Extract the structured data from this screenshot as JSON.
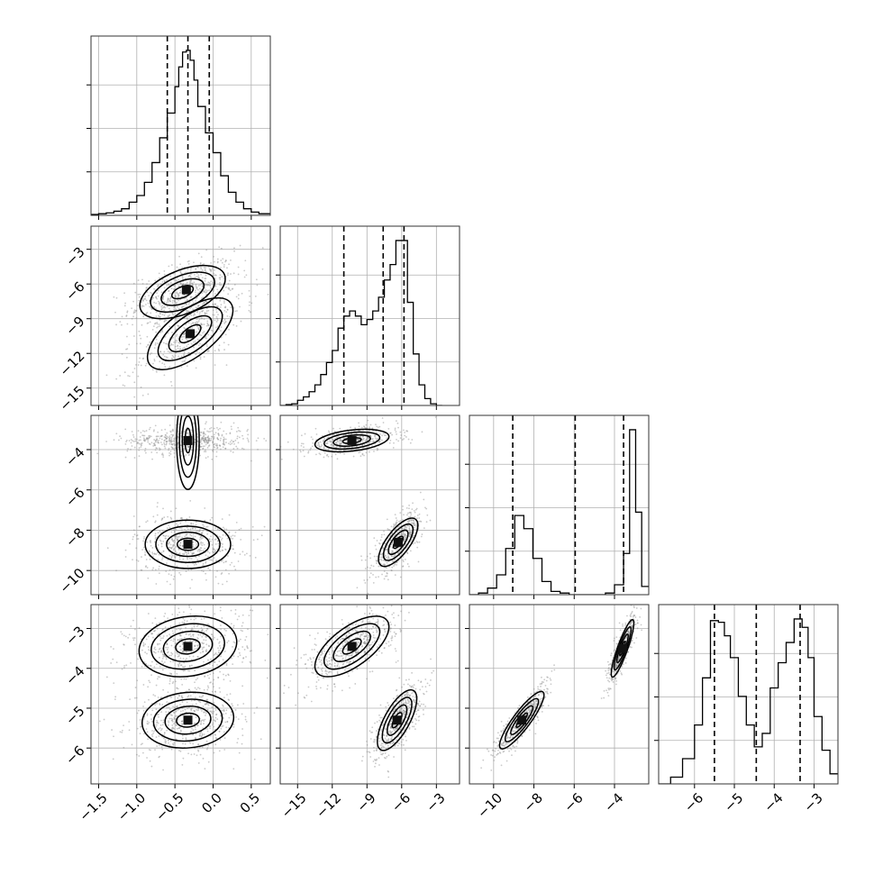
{
  "chart_data": {
    "type": "corner",
    "parameters": [
      {
        "index": 0,
        "range": [
          -1.6,
          0.75
        ],
        "ticks": [
          -1.5,
          -1.0,
          -0.5,
          0.0,
          0.5
        ],
        "tick_labels": [
          "−1.5",
          "−1.0",
          "−0.5",
          "0.0",
          "0.5"
        ],
        "quantiles": [
          -0.6,
          -0.33,
          -0.05
        ]
      },
      {
        "index": 1,
        "range": [
          -16.5,
          -1.0
        ],
        "ticks": [
          -15,
          -12,
          -9,
          -6,
          -3
        ],
        "tick_labels": [
          "−15",
          "−12",
          "−9",
          "−6",
          "−3"
        ],
        "quantiles": [
          -11.0,
          -7.6,
          -5.8
        ]
      },
      {
        "index": 2,
        "range": [
          -11.2,
          -2.3
        ],
        "ticks": [
          -10,
          -8,
          -6,
          -4
        ],
        "tick_labels": [
          "−10",
          "−8",
          "−6",
          "−4"
        ],
        "quantiles": [
          -9.05,
          -5.95,
          -3.55
        ]
      },
      {
        "index": 3,
        "range": [
          -6.9,
          -2.4
        ],
        "ticks": [
          -6,
          -5,
          -4,
          -3
        ],
        "tick_labels": [
          "−6",
          "−5",
          "−4",
          "−3"
        ],
        "quantiles": [
          -5.5,
          -4.45,
          -3.35
        ]
      }
    ],
    "histograms": [
      {
        "param": 0,
        "bins": [
          -1.6,
          -1.5,
          -1.4,
          -1.3,
          -1.2,
          -1.1,
          -1.0,
          -0.9,
          -0.8,
          -0.7,
          -0.6,
          -0.5,
          -0.45,
          -0.4,
          -0.35,
          -0.3,
          -0.25,
          -0.2,
          -0.1,
          0.0,
          0.1,
          0.2,
          0.3,
          0.4,
          0.5,
          0.6,
          0.75
        ],
        "counts": [
          0.5,
          1,
          1.5,
          2.5,
          4,
          8,
          12,
          20,
          32,
          47,
          62,
          78,
          90,
          99,
          100,
          94,
          82,
          66,
          50,
          38,
          24,
          14,
          8,
          4,
          2,
          1
        ]
      },
      {
        "param": 1,
        "bins": [
          -16.5,
          -16,
          -15.5,
          -15,
          -14.5,
          -14,
          -13.5,
          -13,
          -12.5,
          -12,
          -11.5,
          -11,
          -10.5,
          -10,
          -9.5,
          -9,
          -8.5,
          -8,
          -7.5,
          -7,
          -6.5,
          -6,
          -5.5,
          -5,
          -4.5,
          -4,
          -3.5,
          -3,
          -2.5
        ],
        "counts": [
          0,
          0.5,
          1,
          3,
          5,
          8,
          12,
          18,
          25,
          32,
          45,
          52,
          55,
          52,
          47,
          50,
          55,
          63,
          73,
          82,
          96,
          96,
          60,
          30,
          12,
          4,
          1,
          0
        ]
      },
      {
        "param": 2,
        "bins": [
          -11.2,
          -10.75,
          -10.3,
          -9.85,
          -9.4,
          -8.95,
          -8.5,
          -8.05,
          -7.6,
          -7.15,
          -6.7,
          -6.25,
          -5.8,
          -5.35,
          -4.9,
          -4.45,
          -4.0,
          -3.55,
          -3.25,
          -2.95,
          -2.65,
          -2.3
        ],
        "counts": [
          0,
          1,
          4,
          12,
          28,
          48,
          40,
          22,
          8,
          2,
          1,
          0,
          0,
          0,
          0,
          1,
          6,
          25,
          100,
          50,
          5
        ]
      },
      {
        "param": 3,
        "bins": [
          -6.9,
          -6.6,
          -6.3,
          -6.0,
          -5.8,
          -5.6,
          -5.4,
          -5.25,
          -5.1,
          -4.9,
          -4.7,
          -4.5,
          -4.3,
          -4.1,
          -3.9,
          -3.7,
          -3.5,
          -3.3,
          -3.15,
          -3.0,
          -2.8,
          -2.6,
          -2.4
        ],
        "counts": [
          0,
          4,
          15,
          35,
          63,
          97,
          96,
          88,
          75,
          52,
          35,
          22,
          30,
          57,
          72,
          84,
          98,
          93,
          75,
          40,
          20,
          6
        ]
      }
    ],
    "density_blobs": [
      {
        "x": 0,
        "y": 1,
        "cx": -0.4,
        "cy": -6.7,
        "sx": 0.28,
        "sy": 1.15,
        "rho": 0.5,
        "w": 0.55,
        "peak": [
          -0.35,
          -6.5
        ]
      },
      {
        "x": 0,
        "y": 1,
        "cx": -0.3,
        "cy": -10.3,
        "sx": 0.28,
        "sy": 1.55,
        "rho": 0.65,
        "w": 0.45,
        "peak": [
          -0.3,
          -10.3
        ]
      },
      {
        "x": 0,
        "y": 2,
        "cx": -0.33,
        "cy": -3.55,
        "sx": 0.32,
        "sy": 0.28,
        "rho": 0.0,
        "w": 0.5,
        "peak": [
          -0.33,
          -3.55
        ]
      },
      {
        "x": 0,
        "y": 2,
        "cx": -0.33,
        "cy": -8.7,
        "sx": 0.28,
        "sy": 0.6,
        "rho": 0.0,
        "w": 0.5,
        "peak": [
          -0.33,
          -8.7
        ]
      },
      {
        "x": 0,
        "y": 3,
        "cx": -0.33,
        "cy": -3.45,
        "sx": 0.32,
        "sy": 0.38,
        "rho": 0.15,
        "w": 0.5,
        "peak": [
          -0.33,
          -3.45
        ]
      },
      {
        "x": 0,
        "y": 3,
        "cx": -0.33,
        "cy": -5.3,
        "sx": 0.3,
        "sy": 0.35,
        "rho": 0.1,
        "w": 0.5,
        "peak": [
          -0.33,
          -5.3
        ]
      },
      {
        "x": 1,
        "y": 2,
        "cx": -10.3,
        "cy": -3.55,
        "sx": 1.6,
        "sy": 0.28,
        "rho": 0.35,
        "w": 0.5,
        "peak": [
          -10.3,
          -3.55
        ]
      },
      {
        "x": 1,
        "y": 2,
        "cx": -6.3,
        "cy": -8.6,
        "sx": 0.85,
        "sy": 0.6,
        "rho": 0.7,
        "w": 0.5,
        "peak": [
          -6.3,
          -8.6
        ]
      },
      {
        "x": 1,
        "y": 3,
        "cx": -10.3,
        "cy": -3.45,
        "sx": 1.6,
        "sy": 0.38,
        "rho": 0.65,
        "w": 0.5,
        "peak": [
          -10.3,
          -3.45
        ]
      },
      {
        "x": 1,
        "y": 3,
        "cx": -6.4,
        "cy": -5.3,
        "sx": 0.85,
        "sy": 0.38,
        "rho": 0.7,
        "w": 0.5,
        "peak": [
          -6.4,
          -5.3
        ]
      },
      {
        "x": 2,
        "y": 3,
        "cx": -8.6,
        "cy": -5.3,
        "sx": 0.55,
        "sy": 0.36,
        "rho": 0.88,
        "w": 0.5,
        "peak": [
          -8.6,
          -5.3
        ]
      },
      {
        "x": 2,
        "y": 3,
        "cx": -3.6,
        "cy": -3.5,
        "sx": 0.28,
        "sy": 0.36,
        "rho": 0.88,
        "w": 0.5,
        "peak": [
          -3.6,
          -3.5
        ]
      }
    ],
    "contour_levels": [
      "0.5σ",
      "1σ",
      "1.5σ",
      "2σ"
    ],
    "grid": true,
    "legend": "none"
  }
}
